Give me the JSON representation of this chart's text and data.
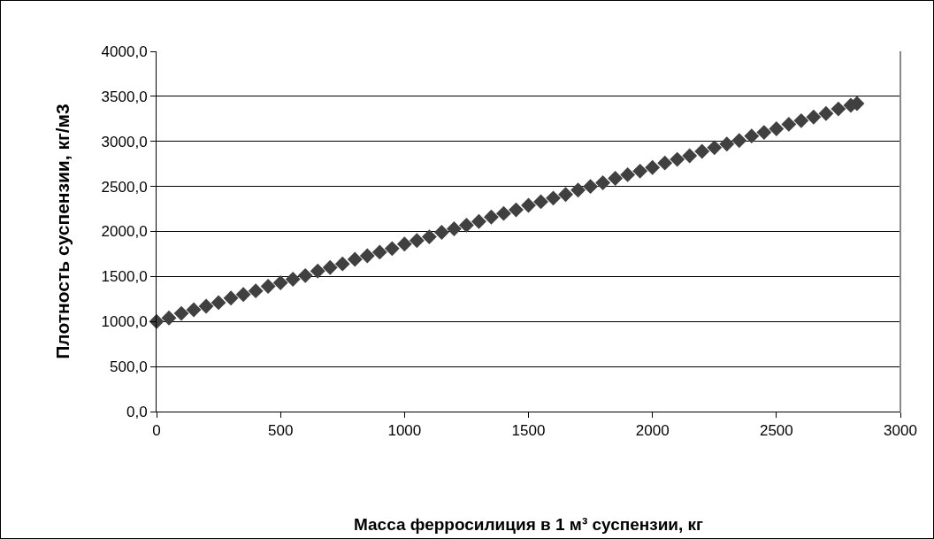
{
  "chart_data": {
    "type": "scatter",
    "xlabel": "Масса ферросилиция в 1 м³ суспензии, кг",
    "ylabel": "Плотность суспензии, кг/м3",
    "x": [
      0,
      50,
      100,
      150,
      200,
      250,
      300,
      350,
      400,
      450,
      500,
      550,
      600,
      650,
      700,
      750,
      800,
      850,
      900,
      950,
      1000,
      1050,
      1100,
      1150,
      1200,
      1250,
      1300,
      1350,
      1400,
      1450,
      1500,
      1550,
      1600,
      1650,
      1700,
      1750,
      1800,
      1850,
      1900,
      1950,
      2000,
      2050,
      2100,
      2150,
      2200,
      2250,
      2300,
      2350,
      2400,
      2450,
      2500,
      2550,
      2600,
      2650,
      2700,
      2750,
      2800,
      2825
    ],
    "series": [
      {
        "color": "#404040",
        "values": [
          1000,
          1040,
          1090,
          1130,
          1170,
          1210,
          1260,
          1300,
          1340,
          1390,
          1430,
          1470,
          1510,
          1560,
          1600,
          1640,
          1690,
          1730,
          1770,
          1810,
          1860,
          1900,
          1940,
          1990,
          2030,
          2070,
          2110,
          2160,
          2200,
          2240,
          2290,
          2330,
          2370,
          2410,
          2460,
          2500,
          2540,
          2590,
          2630,
          2670,
          2710,
          2760,
          2800,
          2840,
          2890,
          2930,
          2970,
          3010,
          3060,
          3100,
          3140,
          3190,
          3230,
          3270,
          3310,
          3360,
          3400,
          3420
        ]
      }
    ],
    "xlim": [
      0,
      3000
    ],
    "xticks": [
      0,
      500,
      1000,
      1500,
      2000,
      2500,
      3000
    ],
    "ylim": [
      0,
      4000
    ],
    "yticks": [
      {
        "value": 0,
        "label": "0,0"
      },
      {
        "value": 500,
        "label": "500,0"
      },
      {
        "value": 1000,
        "label": "1000,0"
      },
      {
        "value": 1500,
        "label": "1500,0"
      },
      {
        "value": 2000,
        "label": "2000,0"
      },
      {
        "value": 2500,
        "label": "2500,0"
      },
      {
        "value": 3000,
        "label": "3000,0"
      },
      {
        "value": 3500,
        "label": "3500,0"
      },
      {
        "value": 4000,
        "label": "4000,0"
      }
    ],
    "grid": "y",
    "marker": "diamond"
  }
}
